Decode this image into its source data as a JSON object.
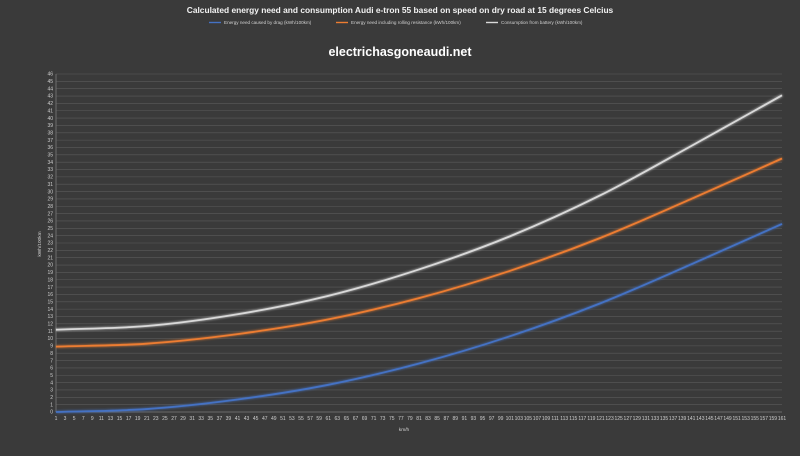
{
  "chart_data": {
    "type": "line",
    "title": "Calculated energy need and consumption Audi e-tron 55 based  on speed on dry road at 15 degrees Celcius",
    "watermark": "electrichasgoneaudi.net",
    "xlabel": "km/h",
    "ylabel": "kWh/100km",
    "x_tick_labels": [
      "1",
      "3",
      "5",
      "7",
      "9",
      "11",
      "13",
      "15",
      "17",
      "19",
      "21",
      "23",
      "25",
      "27",
      "29",
      "31",
      "33",
      "35",
      "37",
      "39",
      "41",
      "43",
      "45",
      "47",
      "49",
      "51",
      "53",
      "55",
      "57",
      "59",
      "61",
      "63",
      "65",
      "67",
      "69",
      "71",
      "73",
      "75",
      "77",
      "79",
      "81",
      "83",
      "85",
      "87",
      "89",
      "91",
      "93",
      "95",
      "97",
      "99",
      "101",
      "103",
      "105",
      "107",
      "109",
      "111",
      "113",
      "115",
      "117",
      "119",
      "121",
      "123",
      "125",
      "127",
      "129",
      "131",
      "133",
      "135",
      "137",
      "139",
      "141",
      "143",
      "145",
      "147",
      "149",
      "151",
      "153",
      "155",
      "157",
      "159",
      "161"
    ],
    "y_tick_labels": [
      "0",
      "1",
      "2",
      "3",
      "4",
      "5",
      "6",
      "7",
      "8",
      "9",
      "10",
      "11",
      "12",
      "13",
      "14",
      "15",
      "16",
      "17",
      "18",
      "19",
      "20",
      "21",
      "22",
      "23",
      "24",
      "25",
      "26",
      "27",
      "28",
      "29",
      "30",
      "31",
      "32",
      "33",
      "34",
      "35",
      "36",
      "37",
      "38",
      "39",
      "40",
      "41",
      "42",
      "43",
      "44",
      "45",
      "46"
    ],
    "xlim": [
      1,
      161
    ],
    "ylim": [
      0,
      46
    ],
    "grid": true,
    "legend_position": "top",
    "series": [
      {
        "name": "Energy need caused by drag (kWh/100km)",
        "color": "#4472c4",
        "x": [
          1,
          21,
          41,
          61,
          81,
          101,
          121,
          141,
          161
        ],
        "y": [
          0.0,
          0.4,
          1.7,
          3.7,
          6.6,
          10.3,
          14.8,
          20.1,
          25.6
        ]
      },
      {
        "name": "Energy need including rolling resistance (kWh/100km)",
        "color": "#ed7d31",
        "x": [
          1,
          21,
          41,
          61,
          81,
          101,
          121,
          141,
          161
        ],
        "y": [
          8.9,
          9.3,
          10.6,
          12.6,
          15.5,
          19.2,
          23.7,
          29.0,
          34.5
        ]
      },
      {
        "name": "Consumption from battery (kWh/100km)",
        "color": "#d9d9d9",
        "x": [
          1,
          21,
          41,
          61,
          81,
          101,
          121,
          141,
          161
        ],
        "y": [
          11.2,
          11.7,
          13.3,
          15.8,
          19.4,
          23.9,
          29.5,
          36.2,
          43.1
        ]
      }
    ]
  }
}
